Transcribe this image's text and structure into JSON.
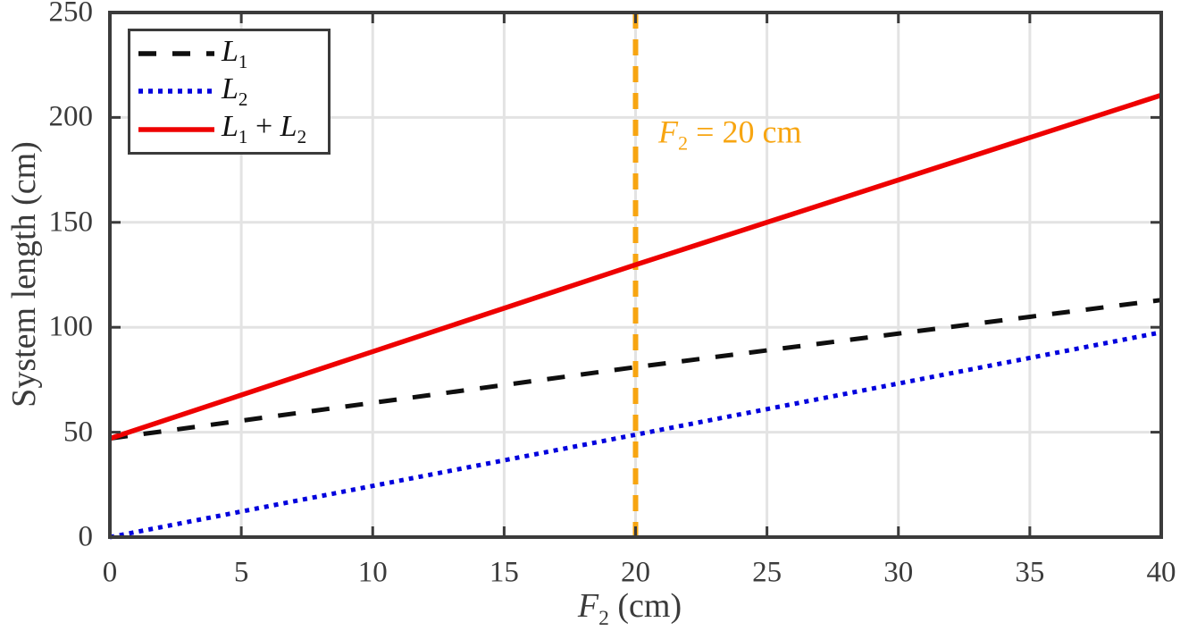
{
  "figure": {
    "kind": "matlab-style line plot",
    "background": "#ffffff",
    "axis_color": "#3b3b3b",
    "grid_color": "#e3e3e3",
    "tick_label_color": "#3b3b3b"
  },
  "chart_data": {
    "type": "line",
    "title": "",
    "xlabel": "F2 (cm)",
    "ylabel": "System length (cm)",
    "xlabel_rich": [
      {
        "t": "F",
        "i": true
      },
      {
        "t": "2",
        "sub": true
      },
      {
        "t": " (cm)"
      }
    ],
    "xlim": [
      0,
      40
    ],
    "ylim": [
      0,
      250
    ],
    "xticks": [
      0,
      5,
      10,
      15,
      20,
      25,
      30,
      35,
      40
    ],
    "yticks": [
      0,
      50,
      100,
      150,
      200,
      250
    ],
    "grid": true,
    "legend_position": "top-left",
    "x": [
      0,
      5,
      10,
      15,
      20,
      25,
      30,
      35,
      40
    ],
    "series": [
      {
        "name": "L1",
        "label": "L1",
        "label_rich": [
          {
            "t": "L",
            "i": true
          },
          {
            "t": "1",
            "sub": true
          }
        ],
        "style": "dashed",
        "color": "#0f0f0f",
        "values": [
          47,
          55.5,
          64,
          72.5,
          81,
          89,
          97,
          105,
          113
        ]
      },
      {
        "name": "L2",
        "label": "L2",
        "label_rich": [
          {
            "t": "L",
            "i": true
          },
          {
            "t": "2",
            "sub": true
          }
        ],
        "style": "dotted",
        "color": "#0000dd",
        "values": [
          0,
          12.2,
          24.4,
          36.6,
          48.8,
          61,
          73.2,
          85.4,
          97.6
        ]
      },
      {
        "name": "L1+L2",
        "label": "L1 + L2",
        "label_rich": [
          {
            "t": "L",
            "i": true
          },
          {
            "t": "1",
            "sub": true
          },
          {
            "t": " + "
          },
          {
            "t": "L",
            "i": true
          },
          {
            "t": "2",
            "sub": true
          }
        ],
        "style": "solid",
        "color": "#ee0000",
        "values": [
          47,
          67.7,
          88.4,
          109.1,
          129.8,
          150,
          170.2,
          190.4,
          210.6
        ]
      }
    ],
    "vline": {
      "x": 20,
      "style": "dashed",
      "color": "#f7a511",
      "label": "F2 = 20 cm",
      "label_rich": [
        {
          "t": "F",
          "i": true
        },
        {
          "t": "2",
          "sub": true
        },
        {
          "t": " = 20 cm"
        }
      ]
    }
  }
}
